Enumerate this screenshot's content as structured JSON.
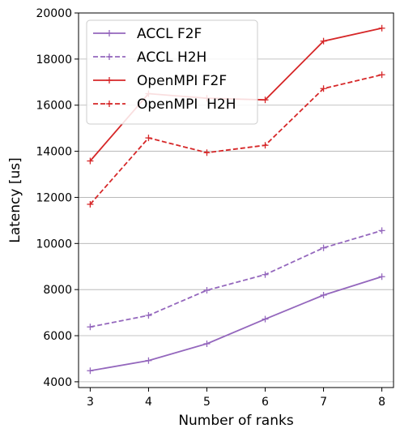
{
  "chart_data": {
    "type": "line",
    "xlabel": "Number of ranks",
    "ylabel": "Latency [us]",
    "x": [
      3,
      4,
      5,
      6,
      7,
      8
    ],
    "xlim": [
      2.8,
      8.2
    ],
    "ylim": [
      3750,
      20000
    ],
    "xticks": [
      3,
      4,
      5,
      6,
      7,
      8
    ],
    "xtick_labels": [
      "3",
      "4",
      "5",
      "6",
      "7",
      "8"
    ],
    "yticks": [
      4000,
      6000,
      8000,
      10000,
      12000,
      14000,
      16000,
      18000,
      20000
    ],
    "ytick_labels": [
      "4000",
      "6000",
      "8000",
      "10000",
      "12000",
      "14000",
      "16000",
      "18000",
      "20000"
    ],
    "grid": "horizontal",
    "legend_position": "top-left",
    "marker": "+",
    "series": [
      {
        "name": "ACCL F2F",
        "color": "#9467bd",
        "style": "solid",
        "values": [
          4480,
          4920,
          5650,
          6720,
          7760,
          8560
        ]
      },
      {
        "name": "ACCL H2H",
        "color": "#9467bd",
        "style": "dashed",
        "values": [
          6380,
          6880,
          7970,
          8650,
          9810,
          10560
        ]
      },
      {
        "name": "OpenMPI F2F",
        "color": "#d62728",
        "style": "solid",
        "values": [
          13580,
          16500,
          16300,
          16230,
          18780,
          19340
        ]
      },
      {
        "name": "OpenMPI  H2H",
        "color": "#d62728",
        "style": "dashed",
        "values": [
          11700,
          14580,
          13940,
          14260,
          16720,
          17320
        ]
      }
    ]
  }
}
